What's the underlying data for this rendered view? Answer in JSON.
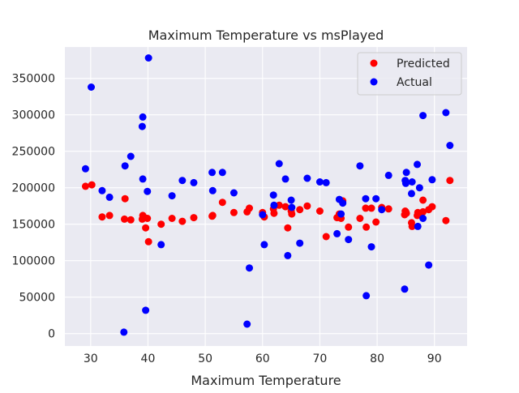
{
  "chart_data": {
    "type": "scatter",
    "title": "Maximum Temperature vs msPlayed",
    "xlabel": "Maximum Temperature",
    "ylabel": "",
    "xlim": [
      25.5,
      95.7
    ],
    "ylim": [
      -17000,
      393000
    ],
    "xticks": [
      30,
      40,
      50,
      60,
      70,
      80,
      90
    ],
    "yticks": [
      0,
      50000,
      100000,
      150000,
      200000,
      250000,
      300000,
      350000
    ],
    "grid": true,
    "legend_position": "top-right",
    "series": [
      {
        "name": "Predicted",
        "color": "#ff0000",
        "points": [
          [
            29.1,
            202000
          ],
          [
            30.2,
            204000
          ],
          [
            32.0,
            160000
          ],
          [
            33.3,
            162000
          ],
          [
            35.9,
            157000
          ],
          [
            36.0,
            185000
          ],
          [
            37.0,
            156000
          ],
          [
            39.0,
            157000
          ],
          [
            39.1,
            162000
          ],
          [
            39.4,
            159000
          ],
          [
            39.6,
            145000
          ],
          [
            39.9,
            158000
          ],
          [
            40.1,
            126000
          ],
          [
            42.3,
            150000
          ],
          [
            44.2,
            158000
          ],
          [
            46.0,
            154000
          ],
          [
            48.0,
            159000
          ],
          [
            51.2,
            161000
          ],
          [
            51.3,
            162000
          ],
          [
            53.0,
            180000
          ],
          [
            55.0,
            166000
          ],
          [
            57.3,
            167000
          ],
          [
            57.7,
            172000
          ],
          [
            60.0,
            166000
          ],
          [
            60.3,
            160000
          ],
          [
            61.9,
            171000
          ],
          [
            62.0,
            165000
          ],
          [
            62.9,
            176000
          ],
          [
            64.0,
            174000
          ],
          [
            64.4,
            145000
          ],
          [
            65.0,
            168000
          ],
          [
            65.1,
            164000
          ],
          [
            66.5,
            170000
          ],
          [
            67.8,
            175000
          ],
          [
            70.0,
            168000
          ],
          [
            71.1,
            133000
          ],
          [
            73.0,
            159000
          ],
          [
            73.4,
            164000
          ],
          [
            73.7,
            158000
          ],
          [
            74.0,
            182000
          ],
          [
            75.0,
            146000
          ],
          [
            77.0,
            158000
          ],
          [
            78.0,
            172000
          ],
          [
            78.1,
            146000
          ],
          [
            79.0,
            172000
          ],
          [
            79.8,
            153000
          ],
          [
            80.8,
            173000
          ],
          [
            82.0,
            171000
          ],
          [
            84.8,
            163000
          ],
          [
            84.9,
            168000
          ],
          [
            85.0,
            167000
          ],
          [
            85.1,
            165000
          ],
          [
            86.0,
            152000
          ],
          [
            86.1,
            147000
          ],
          [
            87.0,
            162000
          ],
          [
            87.1,
            166000
          ],
          [
            87.4,
            165000
          ],
          [
            88.0,
            183000
          ],
          [
            88.0,
            167000
          ],
          [
            89.0,
            170000
          ],
          [
            89.6,
            174000
          ],
          [
            92.0,
            155000
          ],
          [
            92.7,
            210000
          ]
        ]
      },
      {
        "name": "Actual",
        "color": "#0000ff",
        "points": [
          [
            29.1,
            226000
          ],
          [
            30.1,
            338000
          ],
          [
            32.0,
            196000
          ],
          [
            33.3,
            187000
          ],
          [
            35.8,
            2000
          ],
          [
            36.0,
            230000
          ],
          [
            37.0,
            243000
          ],
          [
            39.0,
            284000
          ],
          [
            39.1,
            297000
          ],
          [
            39.1,
            212000
          ],
          [
            39.6,
            32000
          ],
          [
            39.9,
            195000
          ],
          [
            40.1,
            378000
          ],
          [
            42.3,
            122000
          ],
          [
            44.2,
            189000
          ],
          [
            46.0,
            210000
          ],
          [
            48.0,
            207000
          ],
          [
            51.2,
            221000
          ],
          [
            51.3,
            196000
          ],
          [
            53.0,
            221000
          ],
          [
            55.0,
            193000
          ],
          [
            57.3,
            13000
          ],
          [
            57.7,
            90000
          ],
          [
            60.0,
            163000
          ],
          [
            60.3,
            122000
          ],
          [
            61.9,
            190000
          ],
          [
            62.0,
            176000
          ],
          [
            62.9,
            233000
          ],
          [
            64.0,
            212000
          ],
          [
            64.4,
            107000
          ],
          [
            65.0,
            183000
          ],
          [
            65.1,
            173000
          ],
          [
            66.5,
            124000
          ],
          [
            67.8,
            213000
          ],
          [
            70.0,
            208000
          ],
          [
            71.1,
            207000
          ],
          [
            73.0,
            137000
          ],
          [
            73.4,
            184000
          ],
          [
            73.7,
            164000
          ],
          [
            74.0,
            179000
          ],
          [
            75.0,
            129000
          ],
          [
            77.0,
            230000
          ],
          [
            78.0,
            185000
          ],
          [
            78.1,
            52000
          ],
          [
            79.0,
            119000
          ],
          [
            79.8,
            185000
          ],
          [
            80.8,
            170000
          ],
          [
            82.0,
            217000
          ],
          [
            84.8,
            61000
          ],
          [
            84.9,
            210000
          ],
          [
            85.0,
            206000
          ],
          [
            85.1,
            221000
          ],
          [
            86.0,
            192000
          ],
          [
            86.1,
            208000
          ],
          [
            87.0,
            232000
          ],
          [
            87.1,
            147000
          ],
          [
            87.4,
            200000
          ],
          [
            88.0,
            158000
          ],
          [
            88.0,
            299000
          ],
          [
            89.0,
            94000
          ],
          [
            89.6,
            211000
          ],
          [
            92.0,
            303000
          ],
          [
            92.7,
            258000
          ]
        ]
      }
    ]
  }
}
